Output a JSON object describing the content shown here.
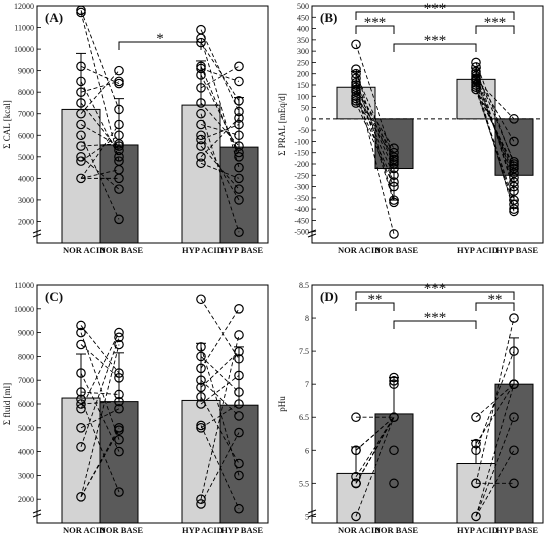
{
  "colors": {
    "acid": "#d3d3d3",
    "base": "#5a5a5a",
    "stroke": "#000000"
  },
  "panels": [
    {
      "label": "(A)",
      "ylabel": "Σ CAL [kcal]",
      "tick_step": 1000,
      "ylim": [
        1000,
        12000
      ],
      "categories": [
        "NOR ACID",
        "NOR BASE",
        "HYP ACID",
        "HYP BASE"
      ],
      "means": [
        7200,
        5550,
        7400,
        5450
      ],
      "sd": [
        2600,
        2150,
        2050,
        2300
      ],
      "individual": [
        [
          11800,
          11700,
          9200,
          8500,
          8000,
          7500,
          7000,
          6500,
          6000,
          5500,
          5000,
          4800,
          4000
        ],
        [
          9000,
          8500,
          8400,
          7200,
          6500,
          6000,
          5600,
          5500,
          5300,
          5000,
          4800,
          4400,
          4000,
          3500,
          2100
        ],
        [
          10900,
          10500,
          10300,
          9200,
          9100,
          8800,
          8200,
          7500,
          7000,
          6500,
          6000,
          5800,
          5500,
          5000,
          4700
        ],
        [
          9200,
          8500,
          7600,
          7100,
          6800,
          6500,
          6000,
          5500,
          5200,
          5000,
          4500,
          4000,
          3500,
          3000,
          1500
        ]
      ],
      "significance": [
        {
          "label": "*",
          "from": 1,
          "to": 2
        }
      ]
    },
    {
      "label": "(B)",
      "ylabel": "Σ PRAL [mEq/d]",
      "tick_step": 50,
      "ylim": [
        -550,
        500
      ],
      "categories": [
        "NOR ACID",
        "NOR BASE",
        "HYP ACID",
        "HYP BASE"
      ],
      "means": [
        140,
        -220,
        175,
        -250
      ],
      "sd": [
        70,
        140,
        50,
        110
      ],
      "individual": [
        [
          330,
          220,
          200,
          180,
          160,
          150,
          140,
          130,
          120,
          100,
          90,
          80,
          70
        ],
        [
          -130,
          -150,
          -170,
          -180,
          -190,
          -200,
          -220,
          -250,
          -280,
          -300,
          -360,
          -370,
          -510
        ],
        [
          250,
          230,
          210,
          200,
          190,
          180,
          175,
          170,
          160,
          150,
          140,
          130
        ],
        [
          0,
          -100,
          -190,
          -200,
          -210,
          -220,
          -240,
          -260,
          -280,
          -300,
          -320,
          -360,
          -380,
          -400,
          -410
        ]
      ],
      "significance": [
        {
          "label": "***",
          "from": 0,
          "to": 1
        },
        {
          "label": "***",
          "from": 0,
          "to": 3
        },
        {
          "label": "***",
          "from": 1,
          "to": 2
        },
        {
          "label": "***",
          "from": 2,
          "to": 3
        }
      ]
    },
    {
      "label": "(C)",
      "ylabel": "Σ fluid [ml]",
      "tick_step": 1000,
      "ylim": [
        1000,
        11000
      ],
      "categories": [
        "NOR ACID",
        "NOR BASE",
        "HYP ACID",
        "HYP BASE"
      ],
      "means": [
        6250,
        6100,
        6150,
        5950
      ],
      "sd": [
        1850,
        2050,
        2400,
        2450
      ],
      "individual": [
        [
          9300,
          9000,
          8500,
          7300,
          6500,
          6200,
          6000,
          5800,
          5000,
          4200,
          2100
        ],
        [
          9000,
          8800,
          8500,
          7300,
          7100,
          6400,
          6100,
          5800,
          5000,
          4900,
          4500,
          4000,
          2300
        ],
        [
          10400,
          8400,
          8000,
          7500,
          7000,
          6700,
          6300,
          6000,
          5100,
          5000,
          2000,
          1800
        ],
        [
          10000,
          8900,
          8200,
          7900,
          7200,
          6500,
          6000,
          5500,
          4800,
          3500,
          3000,
          1600
        ]
      ],
      "significance": []
    },
    {
      "label": "(D)",
      "ylabel": "pHu",
      "tick_step": 0.5,
      "ylim": [
        4.9,
        8.5
      ],
      "categories": [
        "NOR ACID",
        "NOR BASE",
        "HYP ACID",
        "HYP BASE"
      ],
      "means": [
        5.65,
        6.55,
        5.8,
        7.0
      ],
      "sd": [
        0.4,
        0.55,
        0.35,
        0.7
      ],
      "individual": [
        [
          6.5,
          6.0,
          6.0,
          5.6,
          5.5,
          5.5,
          5.5,
          5.5,
          5.0
        ],
        [
          7.1,
          7.05,
          7.0,
          6.5,
          6.5,
          6.0,
          5.5
        ],
        [
          6.5,
          6.1,
          6.0,
          5.5,
          5.5,
          5.0
        ],
        [
          8.0,
          7.5,
          7.0,
          7.0,
          7.0,
          6.5,
          6.0,
          5.5
        ]
      ],
      "significance": [
        {
          "label": "**",
          "from": 0,
          "to": 1
        },
        {
          "label": "***",
          "from": 0,
          "to": 3
        },
        {
          "label": "***",
          "from": 1,
          "to": 2
        },
        {
          "label": "**",
          "from": 2,
          "to": 3
        }
      ]
    }
  ],
  "chart_data": [
    {
      "type": "bar",
      "panel": "(A)",
      "ylabel": "Σ CAL [kcal]",
      "ylim": [
        1000,
        12000
      ],
      "categories": [
        "NOR ACID",
        "NOR BASE",
        "HYP ACID",
        "HYP BASE"
      ],
      "values": [
        7200,
        5550,
        7400,
        5450
      ],
      "error_sd": [
        2600,
        2150,
        2050,
        2300
      ],
      "annotations": [
        "*"
      ]
    },
    {
      "type": "bar",
      "panel": "(B)",
      "ylabel": "Σ PRAL [mEq/d]",
      "ylim": [
        -550,
        500
      ],
      "categories": [
        "NOR ACID",
        "NOR BASE",
        "HYP ACID",
        "HYP BASE"
      ],
      "values": [
        140,
        -220,
        175,
        -250
      ],
      "error_sd": [
        70,
        140,
        50,
        110
      ],
      "annotations": [
        "***",
        "***",
        "***",
        "***"
      ]
    },
    {
      "type": "bar",
      "panel": "(C)",
      "ylabel": "Σ fluid [ml]",
      "ylim": [
        1000,
        11000
      ],
      "categories": [
        "NOR ACID",
        "NOR BASE",
        "HYP ACID",
        "HYP BASE"
      ],
      "values": [
        6250,
        6100,
        6150,
        5950
      ],
      "error_sd": [
        1850,
        2050,
        2400,
        2450
      ]
    },
    {
      "type": "bar",
      "panel": "(D)",
      "ylabel": "pHu",
      "ylim": [
        4.9,
        8.5
      ],
      "categories": [
        "NOR ACID",
        "NOR BASE",
        "HYP ACID",
        "HYP BASE"
      ],
      "values": [
        5.65,
        6.55,
        5.8,
        7.0
      ],
      "error_sd": [
        0.4,
        0.55,
        0.35,
        0.7
      ],
      "annotations": [
        "**",
        "***",
        "***",
        "**"
      ]
    }
  ]
}
